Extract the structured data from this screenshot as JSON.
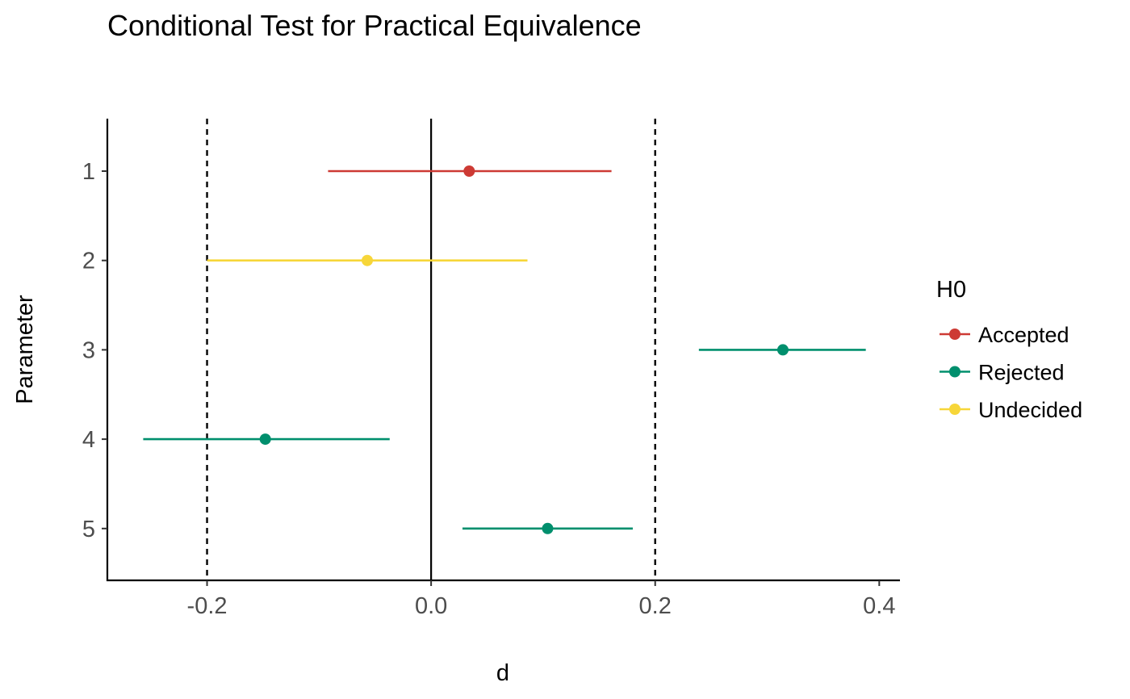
{
  "chart_data": {
    "type": "scatter",
    "title": "Conditional Test for Practical Equivalence",
    "xlabel": "d",
    "ylabel": "Parameter",
    "xlim": [
      -0.289,
      0.4185
    ],
    "x_ticks": [
      -0.2,
      0.0,
      0.2,
      0.4
    ],
    "x_tick_labels": [
      "-0.2",
      "0.0",
      "0.2",
      "0.4"
    ],
    "categories": [
      "1",
      "2",
      "3",
      "4",
      "5"
    ],
    "grid": false,
    "reference_lines": {
      "zero": 0.0,
      "rope": [
        -0.2,
        0.2
      ]
    },
    "legend": {
      "title": "H0",
      "placement": "right",
      "entries": [
        {
          "label": "Accepted",
          "color": "#CD3A34"
        },
        {
          "label": "Rejected",
          "color": "#008F6D"
        },
        {
          "label": "Undecided",
          "color": "#F7D639"
        }
      ]
    },
    "points": [
      {
        "parameter": "1",
        "estimate": 0.034,
        "ci_low": -0.092,
        "ci_high": 0.161,
        "h0": "Accepted"
      },
      {
        "parameter": "2",
        "estimate": -0.057,
        "ci_low": -0.2,
        "ci_high": 0.086,
        "h0": "Undecided"
      },
      {
        "parameter": "3",
        "estimate": 0.314,
        "ci_low": 0.239,
        "ci_high": 0.388,
        "h0": "Rejected"
      },
      {
        "parameter": "4",
        "estimate": -0.148,
        "ci_low": -0.257,
        "ci_high": -0.037,
        "h0": "Rejected"
      },
      {
        "parameter": "5",
        "estimate": 0.104,
        "ci_low": 0.028,
        "ci_high": 0.18,
        "h0": "Rejected"
      }
    ]
  }
}
